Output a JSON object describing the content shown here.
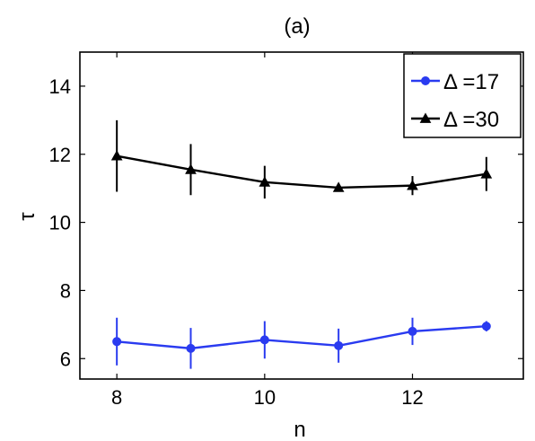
{
  "chart_data": {
    "type": "line",
    "title": "(a)",
    "xlabel": "n",
    "ylabel": "τ",
    "xlim": [
      7.5,
      13.5
    ],
    "ylim": [
      5.4,
      15
    ],
    "xticks": [
      8,
      10,
      12
    ],
    "yticks": [
      6,
      8,
      10,
      12,
      14
    ],
    "grid": false,
    "legend_position": "top-right",
    "series": [
      {
        "name": "Δ =17",
        "color": "#2a3bf0",
        "marker": "circle",
        "x": [
          8,
          9,
          10,
          11,
          12,
          13
        ],
        "y": [
          6.5,
          6.3,
          6.55,
          6.38,
          6.8,
          6.95
        ],
        "err": [
          0.7,
          0.6,
          0.55,
          0.5,
          0.4,
          0.15
        ]
      },
      {
        "name": "Δ =30",
        "color": "#000000",
        "marker": "triangle",
        "x": [
          8,
          9,
          10,
          11,
          12,
          13
        ],
        "y": [
          11.95,
          11.55,
          11.18,
          11.02,
          11.08,
          11.42
        ],
        "err": [
          1.05,
          0.75,
          0.48,
          0.12,
          0.28,
          0.5
        ]
      }
    ]
  }
}
